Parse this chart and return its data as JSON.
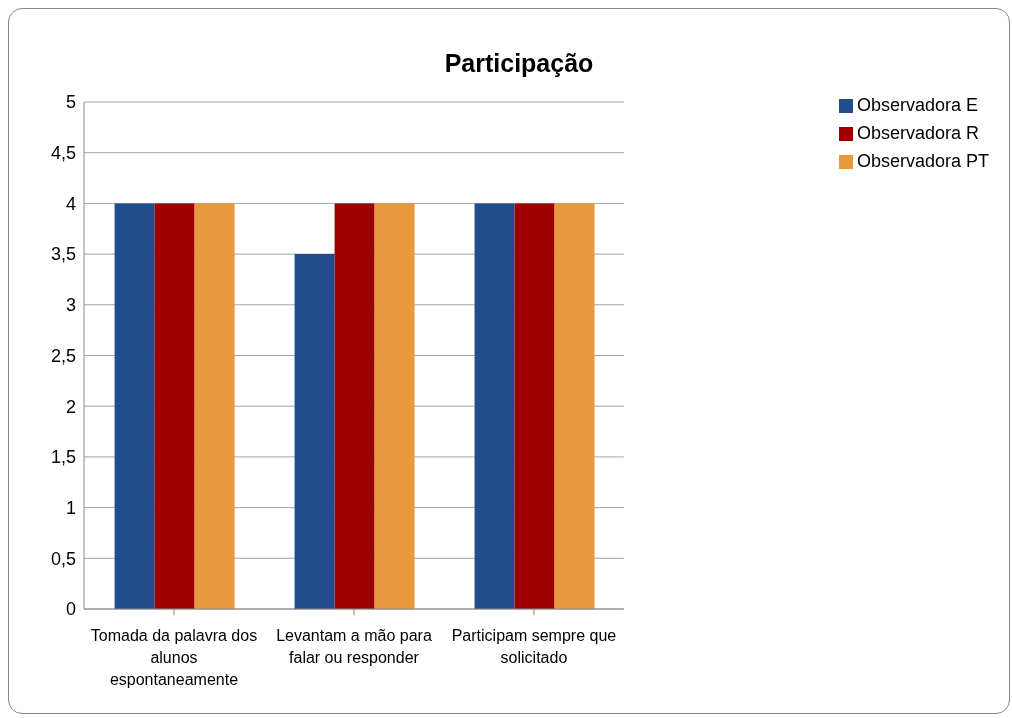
{
  "chart_data": {
    "type": "bar",
    "title": "Participação",
    "categories": [
      "Tomada da palavra dos alunos espontaneamente",
      "Levantam a mão para falar ou responder",
      "Participam sempre que solicitado"
    ],
    "series": [
      {
        "name": "Observadora E",
        "color": "#214d8c",
        "values": [
          4,
          3.5,
          4
        ]
      },
      {
        "name": "Observadora R",
        "color": "#9c0000",
        "values": [
          4,
          4,
          4
        ]
      },
      {
        "name": "Observadora PT",
        "color": "#e8993e",
        "values": [
          4,
          4,
          4
        ]
      }
    ],
    "ylim": [
      0,
      5
    ],
    "yticks": [
      0,
      {
        "value": 0.5,
        "label": "0,5"
      },
      1,
      {
        "value": 1.5,
        "label": "1,5"
      },
      2,
      {
        "value": 2.5,
        "label": "2,5"
      },
      3,
      {
        "value": 3.5,
        "label": "3,5"
      },
      4,
      {
        "value": 4.5,
        "label": "4,5"
      },
      5
    ],
    "grid": "y",
    "legend": "top right"
  }
}
